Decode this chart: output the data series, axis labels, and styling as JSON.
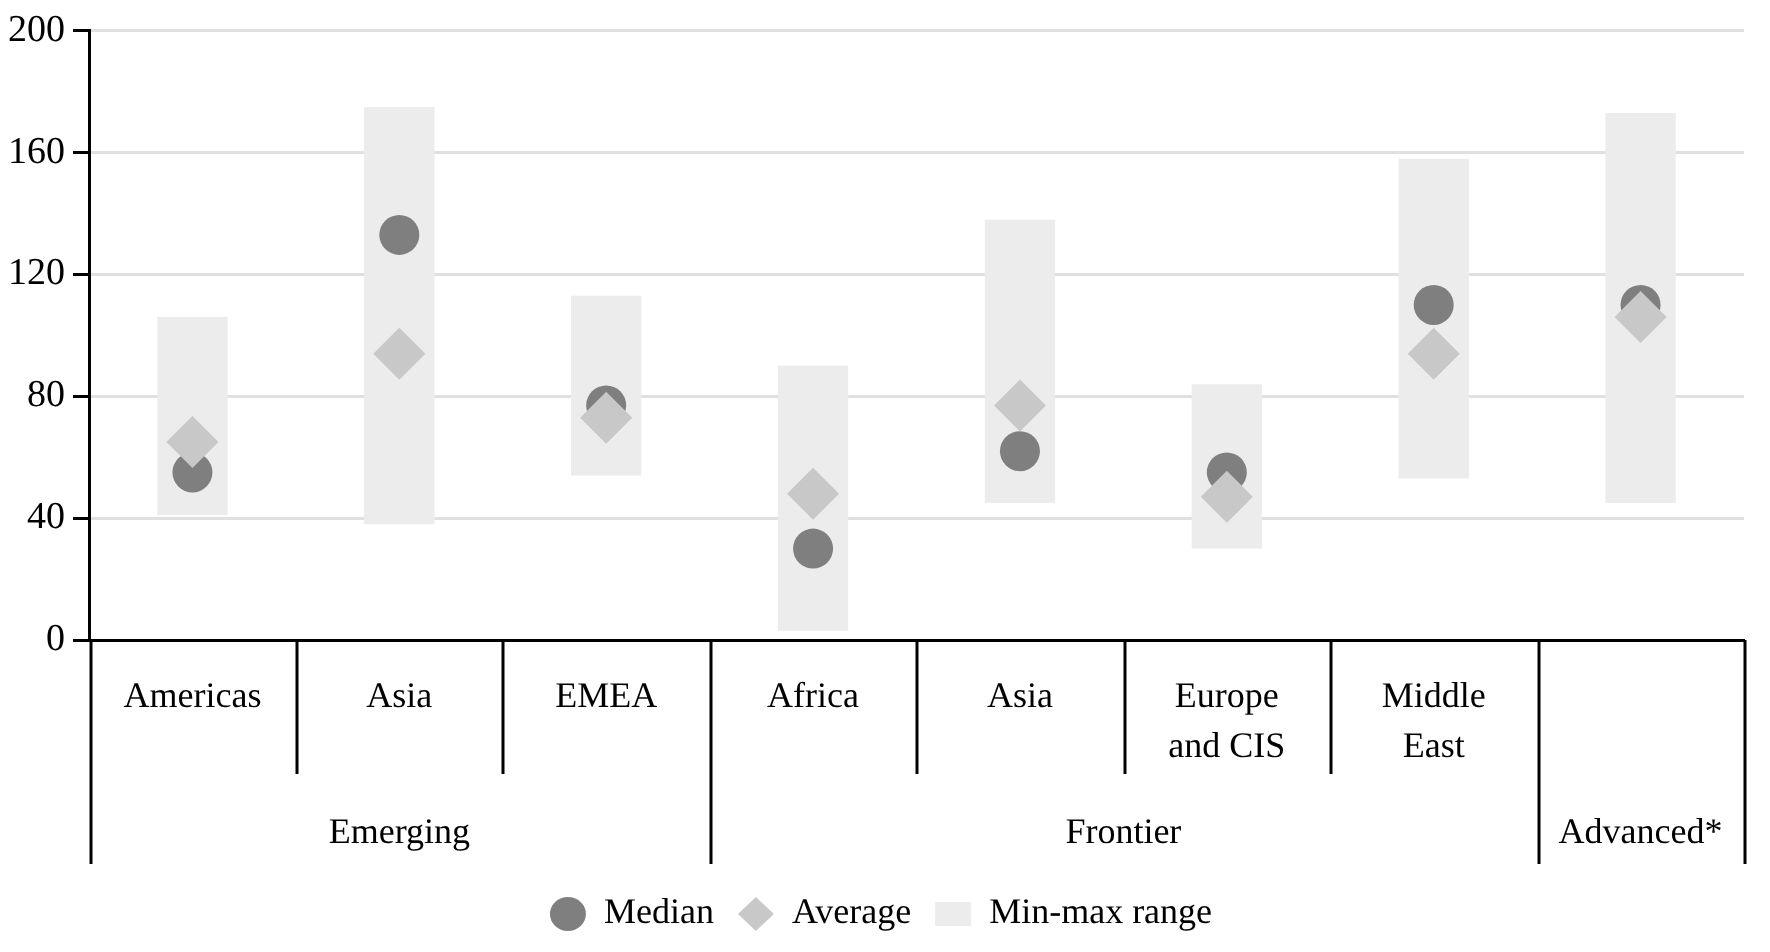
{
  "chart_data": {
    "type": "bar",
    "categories": [
      "Americas",
      "Asia",
      "EMEA",
      "Africa",
      "Asia",
      "Europe and CIS",
      "Middle East",
      null
    ],
    "series": [
      {
        "name": "Median",
        "type": "scatter",
        "marker": "circle",
        "color": "#7f7f7f",
        "values": [
          55,
          133,
          77,
          30,
          62,
          55,
          110,
          110
        ]
      },
      {
        "name": "Average",
        "type": "scatter",
        "marker": "diamond",
        "color": "#c8c8c8",
        "values": [
          65,
          94,
          73,
          48,
          77,
          47,
          94,
          106
        ]
      },
      {
        "name": "Min-max range",
        "color": "#ececec",
        "base": [
          41,
          38,
          54,
          3,
          45,
          30,
          53,
          45
        ],
        "values": [
          65,
          137,
          59,
          87,
          93,
          54,
          105,
          128
        ]
      }
    ],
    "annotations": [
      "Emerging",
      "Frontier",
      "Advanced*"
    ],
    "ylim": [
      0,
      200
    ],
    "yticks": [
      0,
      40,
      80,
      120,
      160,
      200
    ],
    "grid": "y",
    "legend": "bottom"
  }
}
